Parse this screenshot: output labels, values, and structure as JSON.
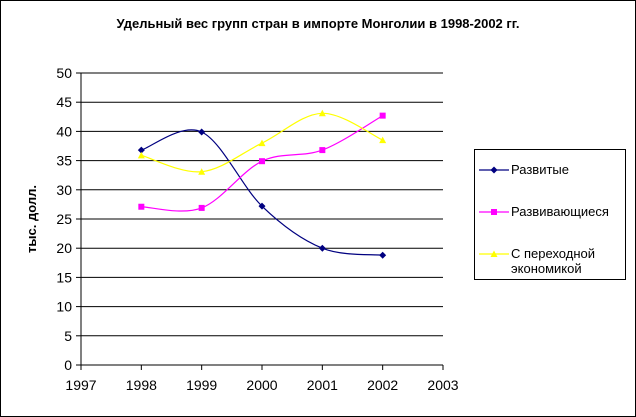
{
  "chart_data": {
    "type": "line",
    "title": "Удельный вес групп стран в импорте Монголии в 1998-2002 гг.",
    "xlabel": "",
    "ylabel": "тыс. долл.",
    "xlim": [
      1997,
      2003
    ],
    "ylim": [
      0,
      50
    ],
    "x_ticks": [
      "1997",
      "1998",
      "1999",
      "2000",
      "2001",
      "2002",
      "2003"
    ],
    "y_ticks": [
      "0",
      "5",
      "10",
      "15",
      "20",
      "25",
      "30",
      "35",
      "40",
      "45",
      "50"
    ],
    "grid": "horizontal",
    "legend_position": "right",
    "x": [
      1998,
      1999,
      2000,
      2001,
      2002
    ],
    "series": [
      {
        "name": "Развитые",
        "color": "#000080",
        "marker": "diamond",
        "values": [
          36.8,
          39.9,
          27.2,
          20.0,
          18.8
        ]
      },
      {
        "name": "Развивающиеся",
        "color": "#ff00ff",
        "marker": "square",
        "values": [
          27.1,
          26.9,
          34.9,
          36.8,
          42.7
        ]
      },
      {
        "name": "С переходной экономикой",
        "name_lines": [
          "С переходной",
          "экономикой"
        ],
        "color": "#ffff00",
        "marker": "triangle",
        "values": [
          35.9,
          33.1,
          38.0,
          43.1,
          38.5
        ]
      }
    ]
  }
}
